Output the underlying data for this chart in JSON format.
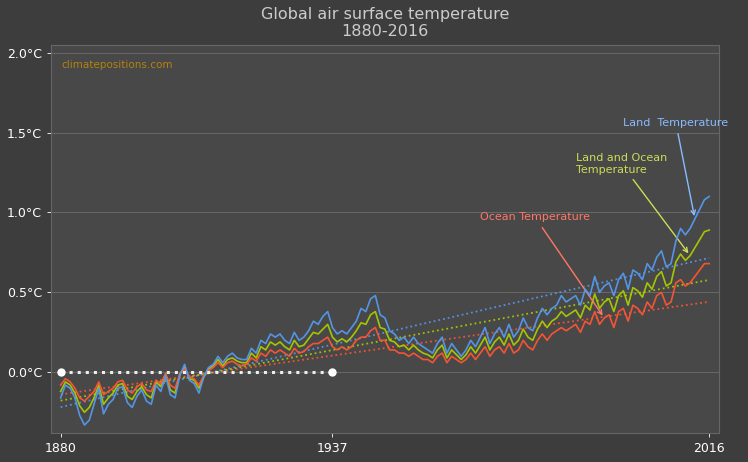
{
  "title_line1": "Global air surface temperature",
  "title_line2": "1880-2016",
  "background_color": "#3d3d3d",
  "plot_bg_color": "#484848",
  "title_color": "#cccccc",
  "watermark_text": "climatepositions.com",
  "watermark_color": "#b8860b",
  "ylabel_ticks": [
    "0.0°C",
    "0.5°C",
    "1.0°C",
    "1.5°C",
    "2.0°C"
  ],
  "ytick_values": [
    0.0,
    0.5,
    1.0,
    1.5,
    2.0
  ],
  "xtick_labels": [
    "1880",
    "1937",
    "2016"
  ],
  "xtick_values": [
    1880,
    1937,
    2016
  ],
  "ylim": [
    -0.38,
    2.05
  ],
  "xlim": [
    1878,
    2018
  ],
  "land_color": "#5599ee",
  "ocean_color": "#ff5533",
  "land_ocean_color": "#aacc00",
  "land_trend_color": "#5599ee",
  "ocean_trend_color": "#ff5533",
  "land_ocean_trend_color": "#aacc00",
  "baseline_color": "#ffffff",
  "grid_color": "#777777",
  "annotation_land": "Land  Temperature",
  "annotation_ocean": "Ocean Temperature",
  "annotation_land_ocean": "Land and Ocean\nTemperature",
  "annotation_land_color": "#88bbff",
  "annotation_ocean_color": "#ff7766",
  "annotation_land_ocean_color": "#ccdd55"
}
